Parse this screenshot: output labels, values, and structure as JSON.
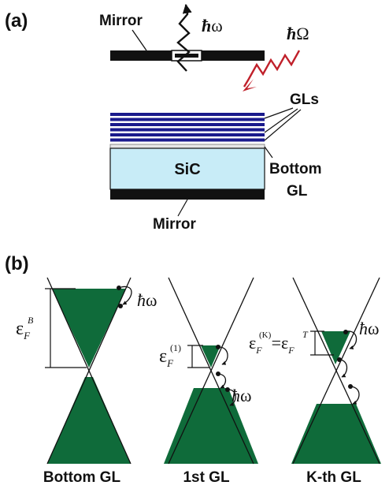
{
  "panel_a": {
    "label": "(a)",
    "top_mirror_label": "Mirror",
    "emission_hbar": "ħ",
    "emission_symbol": "ω",
    "pump_hbar": "ħ",
    "pump_symbol": "Ω",
    "gls_label": "GLs",
    "sic_label": "SiC",
    "bottom_label_line1": "Bottom",
    "bottom_label_line2": "GL",
    "bottom_mirror_label": "Mirror",
    "colors": {
      "gl_layers": "#1a1a8c",
      "sic": "#c8ecf7",
      "pump_arrow": "#c0202a",
      "mirror": "#111111"
    }
  },
  "panel_b": {
    "label": "(b)",
    "fill_color": "#0f6b3a",
    "cones": [
      {
        "caption": "Bottom GL",
        "fermi_symbol": "ε",
        "fermi_sub": "F",
        "fermi_sup": "B",
        "hw_hbar": "ħ",
        "hw_symbol": "ω"
      },
      {
        "caption": "1st GL",
        "fermi_symbol": "ε",
        "fermi_sub": "F",
        "fermi_sup": "(1)",
        "hw_hbar": "ħ",
        "hw_symbol": "ω"
      },
      {
        "caption": "K-th GL",
        "fermi_symbol": "ε",
        "fermi_sub": "F",
        "fermi_sup": "(K)",
        "eq": "=",
        "fermi_symbol2": "ε",
        "fermi_sub2": "F",
        "fermi_sup2": "T",
        "hw_hbar": "ħ",
        "hw_symbol": "ω"
      }
    ]
  }
}
